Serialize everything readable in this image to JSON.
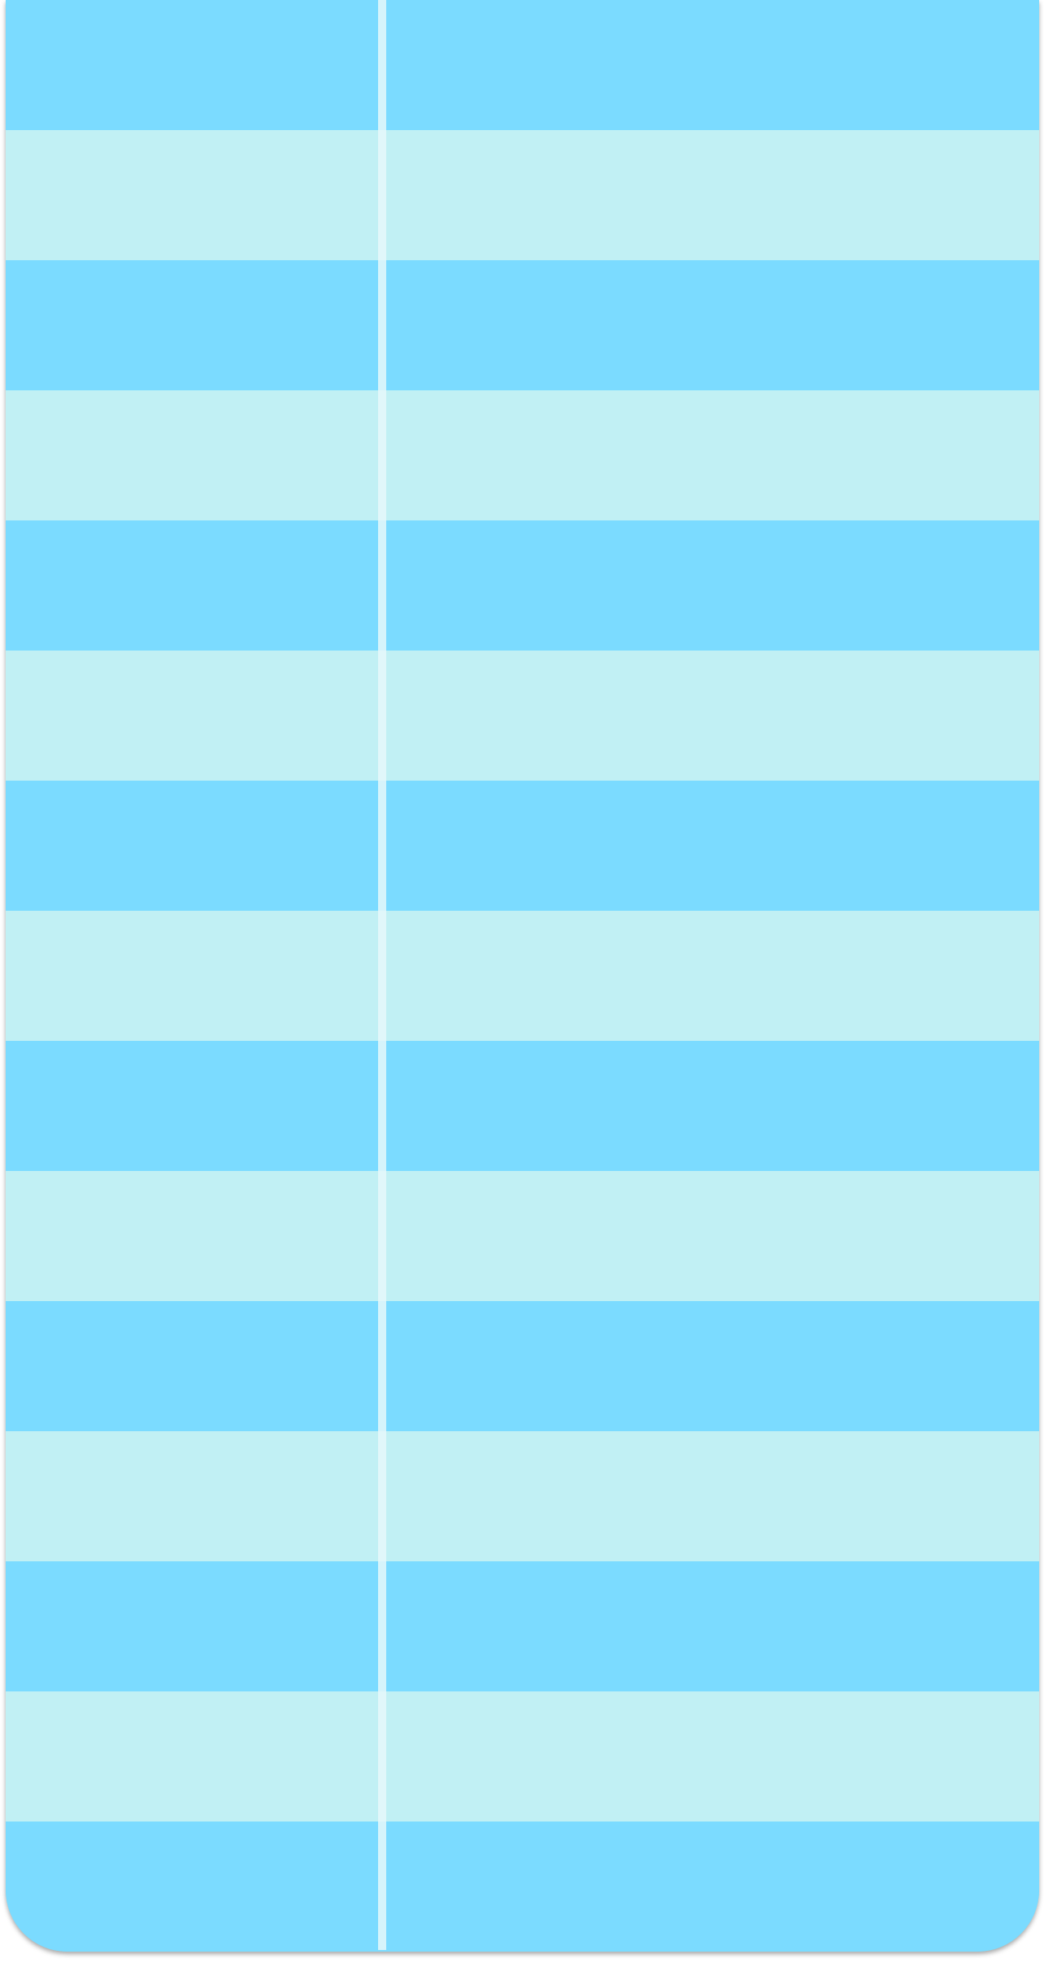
{
  "colors": {
    "row_dark": "#7bdbff",
    "row_light": "#c1f0f4",
    "divider": "#e6f8fa",
    "shadow": "#000000"
  },
  "table": {
    "columns": [
      "",
      ""
    ],
    "rows": [
      {
        "shade": "dark",
        "cells": [
          "",
          ""
        ]
      },
      {
        "shade": "light",
        "cells": [
          "",
          ""
        ]
      },
      {
        "shade": "dark",
        "cells": [
          "",
          ""
        ]
      },
      {
        "shade": "light",
        "cells": [
          "",
          ""
        ]
      },
      {
        "shade": "dark",
        "cells": [
          "",
          ""
        ]
      },
      {
        "shade": "light",
        "cells": [
          "",
          ""
        ]
      },
      {
        "shade": "dark",
        "cells": [
          "",
          ""
        ]
      },
      {
        "shade": "light",
        "cells": [
          "",
          ""
        ]
      },
      {
        "shade": "dark",
        "cells": [
          "",
          ""
        ]
      },
      {
        "shade": "light",
        "cells": [
          "",
          ""
        ]
      },
      {
        "shade": "dark",
        "cells": [
          "",
          ""
        ]
      },
      {
        "shade": "light",
        "cells": [
          "",
          ""
        ]
      },
      {
        "shade": "dark",
        "cells": [
          "",
          ""
        ]
      },
      {
        "shade": "light",
        "cells": [
          "",
          ""
        ]
      },
      {
        "shade": "dark",
        "cells": [
          "",
          ""
        ]
      }
    ]
  }
}
